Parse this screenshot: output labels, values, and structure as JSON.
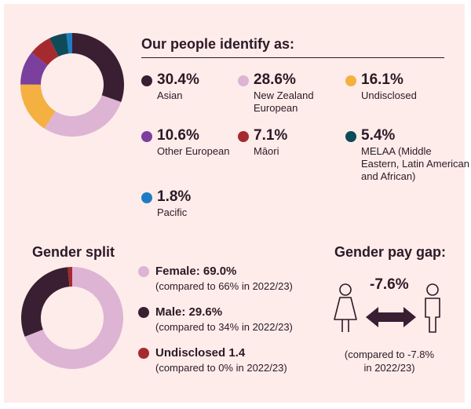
{
  "chart_data": [
    {
      "type": "pie",
      "title": "Our people identify as:",
      "categories": [
        "Asian",
        "New Zealand European",
        "Undisclosed",
        "Other European",
        "Māori",
        "MELAA (Middle Eastern, Latin American and African)",
        "Pacific"
      ],
      "values": [
        30.4,
        28.6,
        16.1,
        10.6,
        7.1,
        5.4,
        1.8
      ],
      "value_labels": [
        "30.4%",
        "28.6%",
        "16.1%",
        "10.6%",
        "7.1%",
        "5.4%",
        "1.8%"
      ],
      "colors": [
        "#3a1f33",
        "#ddb4d4",
        "#f5b042",
        "#7b3f9e",
        "#a52a2f",
        "#0e4a58",
        "#1e7cc5"
      ]
    },
    {
      "type": "pie",
      "title": "Gender split",
      "categories": [
        "Female",
        "Male",
        "Undisclosed"
      ],
      "values": [
        69.0,
        29.6,
        1.4
      ],
      "colors": [
        "#ddb4d4",
        "#3a1f33",
        "#a52a2f"
      ],
      "legend": [
        {
          "main": "Female: 69.0%",
          "sub": "(compared to 66% in 2022/23)"
        },
        {
          "main": "Male: 29.6%",
          "sub": "(compared to 34% in 2022/23)"
        },
        {
          "main": "Undisclosed 1.4",
          "sub": "(compared to 0% in 2022/23)"
        }
      ]
    }
  ],
  "pay_gap": {
    "title": "Gender pay gap:",
    "value": "-7.6%",
    "compare_line1": "(compared to -7.8%",
    "compare_line2": "in 2022/23)"
  }
}
